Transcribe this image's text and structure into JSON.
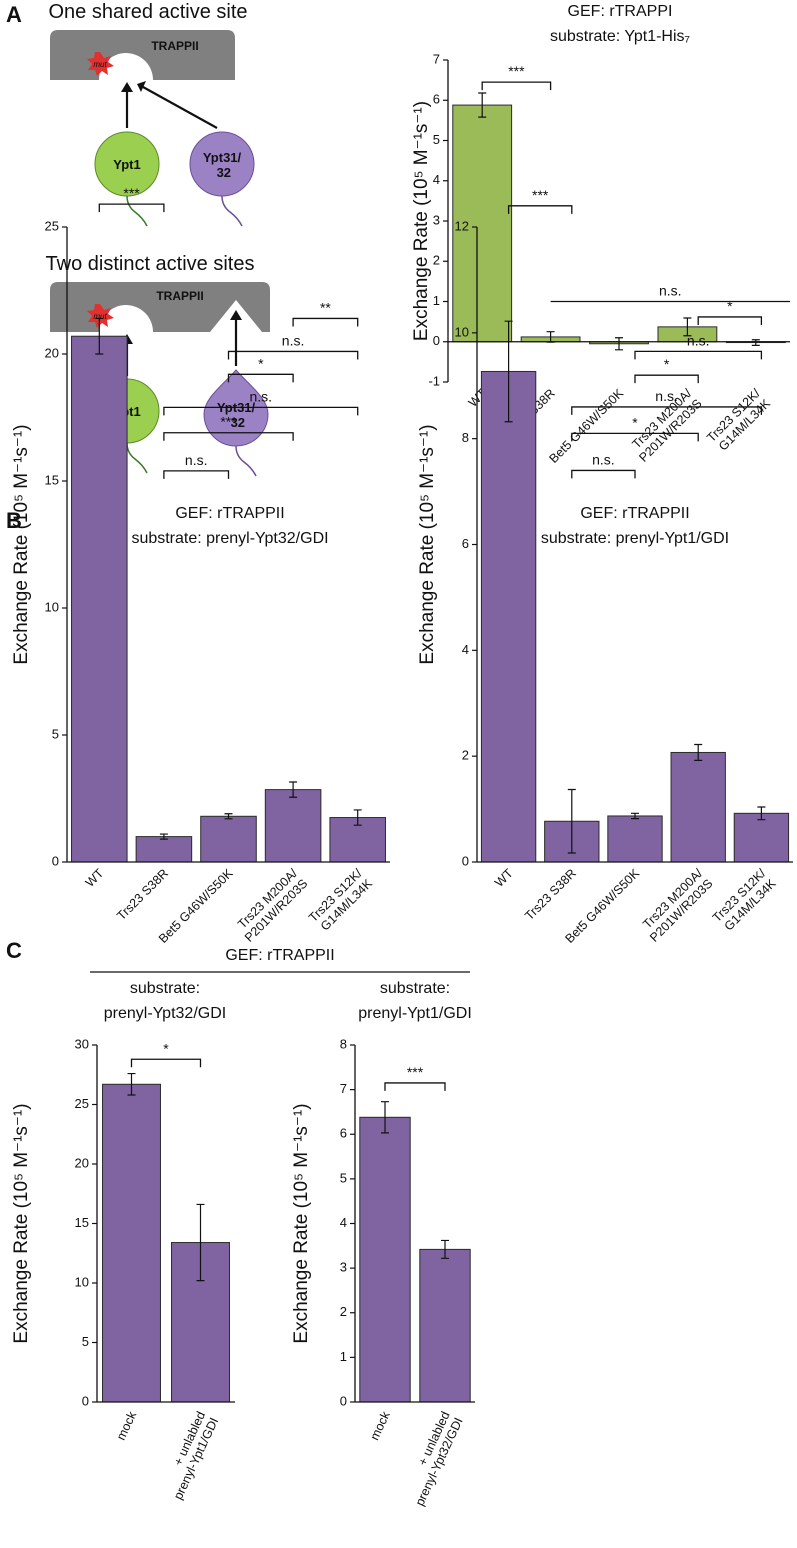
{
  "panel_labels": [
    "A",
    "B",
    "C"
  ],
  "diagram": {
    "top_title": "One shared active site",
    "bottom_title": "Two distinct active sites",
    "complex": "TRAPPII",
    "mutation": "mut",
    "ypt1": "Ypt1",
    "ypt31": "Ypt31/\n32"
  },
  "panel_c_header": "GEF: rTRAPPII",
  "chart_data": [
    {
      "type": "bar",
      "title": "GEF: rTRAPPI",
      "subtitle": "substrate: Ypt1-His₇",
      "ylabel": "Exchange Rate (10⁵ M⁻¹s⁻¹)",
      "categories": [
        "WT",
        "Trs23 S38R",
        "Bet5 G46W/S50K",
        "Trs23 M200A/\nP201W/R203S",
        "Trs23 S12K/\nG14M/L34K"
      ],
      "values": [
        5.88,
        0.12,
        -0.05,
        0.37,
        -0.02
      ],
      "errors": [
        0.3,
        0.13,
        0.15,
        0.22,
        0.07
      ],
      "color": "#9bbb59",
      "ylim": [
        -1,
        7
      ],
      "yticks": [
        -1,
        0,
        1,
        2,
        3,
        4,
        5,
        6,
        7
      ],
      "brackets": [
        {
          "from": 0,
          "to": 1,
          "y": 6.45,
          "label": "***"
        },
        {
          "from": 1,
          "to": 4,
          "y": 1.0,
          "label": "n.s.",
          "ticks": false
        }
      ]
    },
    {
      "type": "bar",
      "title": "GEF: rTRAPPII",
      "subtitle": "substrate: prenyl-Ypt32/GDI",
      "ylabel": "Exchange Rate (10⁵ M⁻¹s⁻¹)",
      "categories": [
        "WT",
        "Trs23 S38R",
        "Bet5 G46W/S50K",
        "Trs23 M200A/\nP201W/R203S",
        "Trs23 S12K/\nG14M/L34K"
      ],
      "values": [
        20.7,
        1.0,
        1.8,
        2.85,
        1.75
      ],
      "errors": [
        0.7,
        0.1,
        0.1,
        0.3,
        0.3
      ],
      "color": "#8064a2",
      "ylim": [
        0,
        25
      ],
      "yticks": [
        0,
        5,
        10,
        15,
        20,
        25
      ],
      "brackets": [
        {
          "from": 0,
          "to": 1,
          "y": 25.9,
          "label": "***"
        },
        {
          "from": 3,
          "to": 4,
          "y": 21.4,
          "label": "**"
        },
        {
          "from": 2,
          "to": 4,
          "y": 20.1,
          "label": "n.s."
        },
        {
          "from": 2,
          "to": 3,
          "y": 19.2,
          "label": "*"
        },
        {
          "from": 1,
          "to": 4,
          "y": 17.9,
          "label": "n.s."
        },
        {
          "from": 1,
          "to": 3,
          "y": 16.9,
          "label": "***"
        },
        {
          "from": 1,
          "to": 2,
          "y": 15.4,
          "label": "n.s."
        }
      ]
    },
    {
      "type": "bar",
      "title": "GEF: rTRAPPII",
      "subtitle": "substrate: prenyl-Ypt1/GDI",
      "ylabel": "Exchange Rate (10⁵ M⁻¹s⁻¹)",
      "categories": [
        "WT",
        "Trs23 S38R",
        "Bet5 G46W/S50K",
        "Trs23 M200A/\nP201W/R203S",
        "Trs23 S12K/\nG14M/L34K"
      ],
      "values": [
        9.27,
        0.77,
        0.87,
        2.07,
        0.92
      ],
      "errors": [
        0.95,
        0.6,
        0.05,
        0.15,
        0.12
      ],
      "color": "#8064a2",
      "ylim": [
        0,
        12
      ],
      "yticks": [
        0,
        2,
        4,
        6,
        8,
        10,
        12
      ],
      "brackets": [
        {
          "from": 0,
          "to": 1,
          "y": 12.4,
          "label": "***"
        },
        {
          "from": 3,
          "to": 4,
          "y": 10.3,
          "label": "*"
        },
        {
          "from": 2,
          "to": 4,
          "y": 9.65,
          "label": "n.s."
        },
        {
          "from": 2,
          "to": 3,
          "y": 9.2,
          "label": "*"
        },
        {
          "from": 1,
          "to": 4,
          "y": 8.6,
          "label": "n.s."
        },
        {
          "from": 1,
          "to": 3,
          "y": 8.1,
          "label": "*"
        },
        {
          "from": 1,
          "to": 2,
          "y": 7.4,
          "label": "n.s."
        }
      ]
    },
    {
      "type": "bar",
      "title": "substrate:",
      "subtitle": "prenyl-Ypt32/GDI",
      "ylabel": "Exchange Rate (10⁵ M⁻¹s⁻¹)",
      "categories": [
        "mock",
        "+ unlabled\nprenyl-Ypt1/GDI"
      ],
      "values": [
        26.7,
        13.4
      ],
      "errors": [
        0.9,
        3.2
      ],
      "color": "#8064a2",
      "ylim": [
        0,
        30
      ],
      "yticks": [
        0,
        5,
        10,
        15,
        20,
        25,
        30
      ],
      "brackets": [
        {
          "from": 0,
          "to": 1,
          "y": 28.8,
          "label": "*"
        }
      ]
    },
    {
      "type": "bar",
      "title": "substrate:",
      "subtitle": "prenyl-Ypt1/GDI",
      "ylabel": "Exchange Rate (10⁵ M⁻¹s⁻¹)",
      "categories": [
        "mock",
        "+ unlabled\nprenyl-Ypt32/GDI"
      ],
      "values": [
        6.38,
        3.42
      ],
      "errors": [
        0.35,
        0.2
      ],
      "color": "#8064a2",
      "ylim": [
        0,
        8
      ],
      "yticks": [
        0,
        1,
        2,
        3,
        4,
        5,
        6,
        7,
        8
      ],
      "brackets": [
        {
          "from": 0,
          "to": 1,
          "y": 7.15,
          "label": "***"
        }
      ]
    }
  ]
}
